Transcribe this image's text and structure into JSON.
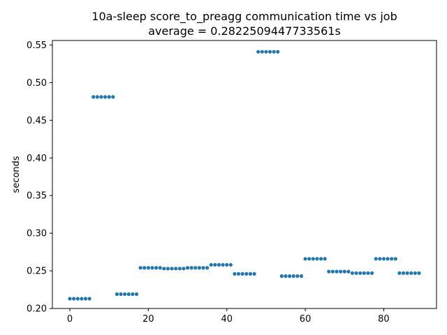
{
  "chart_data": {
    "type": "scatter",
    "title": "10a-sleep score_to_preagg communication time vs job",
    "subtitle": "average = 0.2822509447733561s",
    "xlabel": "",
    "ylabel": "seconds",
    "xlim": [
      -4.45,
      93.45
    ],
    "ylim": [
      0.2,
      0.556
    ],
    "xticks": [
      0,
      20,
      40,
      60,
      80
    ],
    "yticks": [
      0.2,
      0.25,
      0.3,
      0.35,
      0.4,
      0.45,
      0.5,
      0.55
    ],
    "ytick_labels": [
      "0.20",
      "0.25",
      "0.30",
      "0.35",
      "0.40",
      "0.45",
      "0.50",
      "0.55"
    ],
    "grid": false,
    "color": "#1f77b4",
    "series": [
      {
        "x": [
          0,
          1,
          2,
          3,
          4,
          5,
          6,
          7,
          8,
          9,
          10,
          11,
          12,
          13,
          14,
          15,
          16,
          17,
          18,
          19,
          20,
          21,
          22,
          23,
          24,
          25,
          26,
          27,
          28,
          29,
          30,
          31,
          32,
          33,
          34,
          35,
          36,
          37,
          38,
          39,
          40,
          41,
          42,
          43,
          44,
          45,
          46,
          47,
          48,
          49,
          50,
          51,
          52,
          53,
          54,
          55,
          56,
          57,
          58,
          59,
          60,
          61,
          62,
          63,
          64,
          65,
          66,
          67,
          68,
          69,
          70,
          71,
          72,
          73,
          74,
          75,
          76,
          77,
          78,
          79,
          80,
          81,
          82,
          83,
          84,
          85,
          86,
          87,
          88,
          89
        ],
        "y": [
          0.213,
          0.213,
          0.213,
          0.213,
          0.213,
          0.213,
          0.481,
          0.481,
          0.481,
          0.481,
          0.481,
          0.481,
          0.219,
          0.219,
          0.219,
          0.219,
          0.219,
          0.219,
          0.254,
          0.254,
          0.254,
          0.254,
          0.254,
          0.254,
          0.253,
          0.253,
          0.253,
          0.253,
          0.253,
          0.253,
          0.254,
          0.254,
          0.254,
          0.254,
          0.254,
          0.254,
          0.258,
          0.258,
          0.258,
          0.258,
          0.258,
          0.258,
          0.246,
          0.246,
          0.246,
          0.246,
          0.246,
          0.246,
          0.541,
          0.541,
          0.541,
          0.541,
          0.541,
          0.541,
          0.243,
          0.243,
          0.243,
          0.243,
          0.243,
          0.243,
          0.266,
          0.266,
          0.266,
          0.266,
          0.266,
          0.266,
          0.249,
          0.249,
          0.249,
          0.249,
          0.249,
          0.249,
          0.247,
          0.247,
          0.247,
          0.247,
          0.247,
          0.247,
          0.266,
          0.266,
          0.266,
          0.266,
          0.266,
          0.266,
          0.247,
          0.247,
          0.247,
          0.247,
          0.247,
          0.247
        ]
      }
    ]
  }
}
